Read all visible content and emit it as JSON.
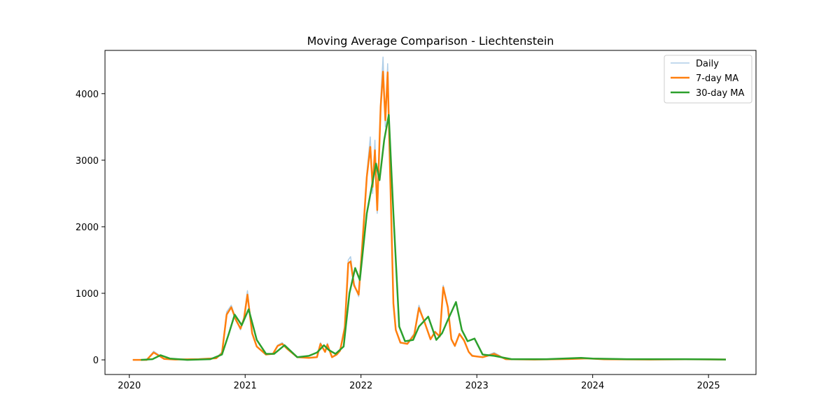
{
  "chart_data": {
    "type": "line",
    "title": "Moving Average Comparison - Liechtenstein",
    "xlabel": "",
    "ylabel": "",
    "x_ticks": [
      "2020",
      "2021",
      "2022",
      "2023",
      "2024",
      "2025"
    ],
    "y_ticks": [
      "0",
      "1000",
      "2000",
      "3000",
      "4000"
    ],
    "xlim": [
      2019.79,
      2025.41
    ],
    "ylim": [
      -220,
      4650
    ],
    "legend_position": "top-right",
    "series": [
      {
        "name": "Daily",
        "color": "#aecde7",
        "x": [
          2020.03,
          2020.15,
          2020.21,
          2020.25,
          2020.3,
          2020.4,
          2020.6,
          2020.75,
          2020.8,
          2020.84,
          2020.88,
          2020.92,
          2020.96,
          2020.99,
          2021.02,
          2021.06,
          2021.1,
          2021.18,
          2021.24,
          2021.28,
          2021.32,
          2021.36,
          2021.45,
          2021.55,
          2021.62,
          2021.65,
          2021.69,
          2021.71,
          2021.75,
          2021.79,
          2021.82,
          2021.86,
          2021.89,
          2021.91,
          2021.94,
          2021.98,
          2022.01,
          2022.05,
          2022.08,
          2022.1,
          2022.12,
          2022.14,
          2022.17,
          2022.19,
          2022.21,
          2022.23,
          2022.25,
          2022.28,
          2022.3,
          2022.34,
          2022.4,
          2022.46,
          2022.5,
          2022.55,
          2022.6,
          2022.64,
          2022.68,
          2022.71,
          2022.75,
          2022.78,
          2022.81,
          2022.85,
          2022.89,
          2022.93,
          2022.96,
          2023.0,
          2023.05,
          2023.15,
          2023.25,
          2023.5,
          2023.8,
          2023.95,
          2024.1,
          2024.5,
          2024.8,
          2025.15
        ],
        "values": [
          0,
          0,
          130,
          80,
          20,
          5,
          10,
          30,
          120,
          720,
          820,
          620,
          450,
          650,
          1040,
          420,
          200,
          80,
          90,
          220,
          260,
          170,
          40,
          30,
          40,
          260,
          120,
          250,
          40,
          90,
          150,
          520,
          1500,
          1550,
          1150,
          950,
          1750,
          2800,
          3350,
          2500,
          3300,
          2200,
          3900,
          4550,
          3500,
          4450,
          2900,
          800,
          450,
          250,
          250,
          400,
          820,
          550,
          300,
          430,
          350,
          1120,
          800,
          300,
          200,
          400,
          300,
          120,
          70,
          50,
          40,
          110,
          10,
          5,
          15,
          25,
          10,
          5,
          10,
          5
        ]
      },
      {
        "name": "7-day MA",
        "color": "#ff7f0e",
        "x": [
          2020.03,
          2020.15,
          2020.21,
          2020.25,
          2020.3,
          2020.4,
          2020.6,
          2020.75,
          2020.8,
          2020.84,
          2020.88,
          2020.92,
          2020.96,
          2020.99,
          2021.02,
          2021.06,
          2021.1,
          2021.18,
          2021.24,
          2021.28,
          2021.32,
          2021.36,
          2021.45,
          2021.55,
          2021.62,
          2021.65,
          2021.69,
          2021.71,
          2021.75,
          2021.79,
          2021.82,
          2021.86,
          2021.89,
          2021.91,
          2021.94,
          2021.98,
          2022.01,
          2022.05,
          2022.08,
          2022.1,
          2022.12,
          2022.14,
          2022.17,
          2022.19,
          2022.21,
          2022.23,
          2022.25,
          2022.28,
          2022.3,
          2022.34,
          2022.4,
          2022.46,
          2022.5,
          2022.55,
          2022.6,
          2022.64,
          2022.68,
          2022.71,
          2022.75,
          2022.78,
          2022.81,
          2022.85,
          2022.89,
          2022.93,
          2022.96,
          2023.0,
          2023.05,
          2023.15,
          2023.25,
          2023.5,
          2023.8,
          2023.95,
          2024.1,
          2024.5,
          2024.8,
          2025.15
        ],
        "values": [
          0,
          0,
          110,
          70,
          15,
          5,
          10,
          25,
          100,
          680,
          790,
          600,
          470,
          620,
          980,
          400,
          200,
          80,
          90,
          210,
          240,
          170,
          40,
          30,
          40,
          240,
          120,
          230,
          40,
          80,
          140,
          480,
          1450,
          1480,
          1120,
          980,
          1700,
          2750,
          3200,
          2600,
          3150,
          2250,
          3800,
          4330,
          3600,
          4320,
          2900,
          850,
          450,
          260,
          240,
          380,
          780,
          560,
          310,
          420,
          350,
          1090,
          790,
          310,
          210,
          390,
          290,
          120,
          60,
          50,
          40,
          90,
          10,
          5,
          12,
          22,
          8,
          5,
          8,
          5
        ]
      },
      {
        "name": "30-day MA",
        "color": "#2ca02c",
        "x": [
          2020.1,
          2020.2,
          2020.27,
          2020.35,
          2020.5,
          2020.7,
          2020.8,
          2020.86,
          2020.91,
          2020.97,
          2021.03,
          2021.1,
          2021.18,
          2021.25,
          2021.34,
          2021.45,
          2021.55,
          2021.62,
          2021.68,
          2021.72,
          2021.78,
          2021.85,
          2021.9,
          2021.95,
          2021.99,
          2022.05,
          2022.13,
          2022.16,
          2022.2,
          2022.24,
          2022.28,
          2022.33,
          2022.38,
          2022.45,
          2022.5,
          2022.58,
          2022.65,
          2022.7,
          2022.75,
          2022.82,
          2022.87,
          2022.92,
          2022.98,
          2023.05,
          2023.15,
          2023.3,
          2023.6,
          2023.9,
          2024.0,
          2024.3,
          2024.8,
          2025.15
        ],
        "values": [
          0,
          10,
          70,
          20,
          0,
          10,
          80,
          400,
          680,
          520,
          760,
          300,
          90,
          90,
          220,
          40,
          60,
          110,
          220,
          150,
          90,
          200,
          1000,
          1380,
          1200,
          2200,
          2950,
          2700,
          3300,
          3680,
          2200,
          500,
          280,
          300,
          500,
          650,
          300,
          400,
          600,
          870,
          450,
          280,
          320,
          80,
          60,
          10,
          10,
          30,
          20,
          10,
          10,
          5
        ]
      }
    ]
  }
}
